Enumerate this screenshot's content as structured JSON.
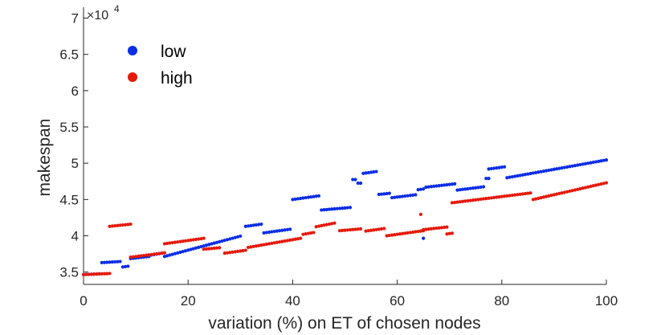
{
  "chart_data": {
    "type": "scatter",
    "xlabel": "variation (%) on ET of chosen nodes",
    "ylabel": "makespan",
    "y_multiplier_label": "×10",
    "y_multiplier_exp": "4",
    "xlim": [
      0,
      100
    ],
    "ylim": [
      33300,
      71500
    ],
    "xticks": [
      0,
      20,
      40,
      60,
      80,
      100
    ],
    "yticks": [
      35000,
      40000,
      45000,
      50000,
      55000,
      60000,
      65000,
      70000
    ],
    "ytick_labels": [
      "3.5",
      "4",
      "4.5",
      "5",
      "5.5",
      "6",
      "6.5",
      "7"
    ],
    "grid": false,
    "legend_position": "top-left",
    "step": 0.5,
    "series": [
      {
        "name": "low",
        "color": "#0a2ee6",
        "segments": [
          [
            0.0,
            34650,
            3.0,
            34750
          ],
          [
            3.5,
            36300,
            7.0,
            36450
          ],
          [
            7.5,
            35700,
            8.5,
            35800
          ],
          [
            9.0,
            36850,
            12.5,
            37150
          ],
          [
            13.0,
            37350,
            15.0,
            37600
          ],
          [
            15.5,
            37150,
            30.0,
            39950
          ],
          [
            31.0,
            41300,
            34.0,
            41600
          ],
          [
            34.5,
            40400,
            39.5,
            40900
          ],
          [
            40.0,
            45000,
            45.0,
            45500
          ],
          [
            45.5,
            43550,
            51.0,
            43900
          ],
          [
            51.5,
            47750,
            52.0,
            47750
          ],
          [
            52.5,
            47250,
            53.0,
            47250
          ],
          [
            53.5,
            48600,
            56.0,
            48850
          ],
          [
            56.5,
            45700,
            58.5,
            45850
          ],
          [
            59.0,
            45250,
            63.5,
            45650
          ],
          [
            64.0,
            46350,
            65.0,
            46450
          ],
          [
            65.5,
            46700,
            71.0,
            47150
          ],
          [
            71.5,
            46300,
            76.5,
            46750
          ],
          [
            77.0,
            47900,
            77.5,
            47900
          ],
          [
            77.5,
            49200,
            80.5,
            49500
          ],
          [
            81.0,
            48000,
            100.0,
            50450
          ]
        ],
        "extra_points": [
          [
            65.0,
            39650
          ],
          [
            53.0,
            47250
          ]
        ]
      },
      {
        "name": "high",
        "color": "#e51a0b",
        "segments": [
          [
            0.0,
            34650,
            5.0,
            34800
          ],
          [
            5.0,
            41300,
            9.0,
            41600
          ],
          [
            9.0,
            37050,
            15.5,
            37650
          ],
          [
            15.5,
            38900,
            23.0,
            39650
          ],
          [
            23.0,
            38150,
            26.0,
            38350
          ],
          [
            27.0,
            37600,
            31.0,
            38000
          ],
          [
            31.5,
            38400,
            41.5,
            39650
          ],
          [
            42.0,
            40200,
            44.0,
            40450
          ],
          [
            44.5,
            41250,
            48.0,
            41750
          ],
          [
            49.0,
            40700,
            53.0,
            40950
          ],
          [
            54.0,
            40650,
            57.5,
            41000
          ],
          [
            58.0,
            40000,
            65.0,
            40700
          ],
          [
            65.0,
            40850,
            69.5,
            41200
          ],
          [
            69.5,
            40250,
            70.5,
            40350
          ],
          [
            70.5,
            44550,
            85.5,
            45900
          ],
          [
            86.0,
            45000,
            100.0,
            47300
          ]
        ],
        "extra_points": [
          [
            64.5,
            42950
          ]
        ]
      }
    ]
  }
}
